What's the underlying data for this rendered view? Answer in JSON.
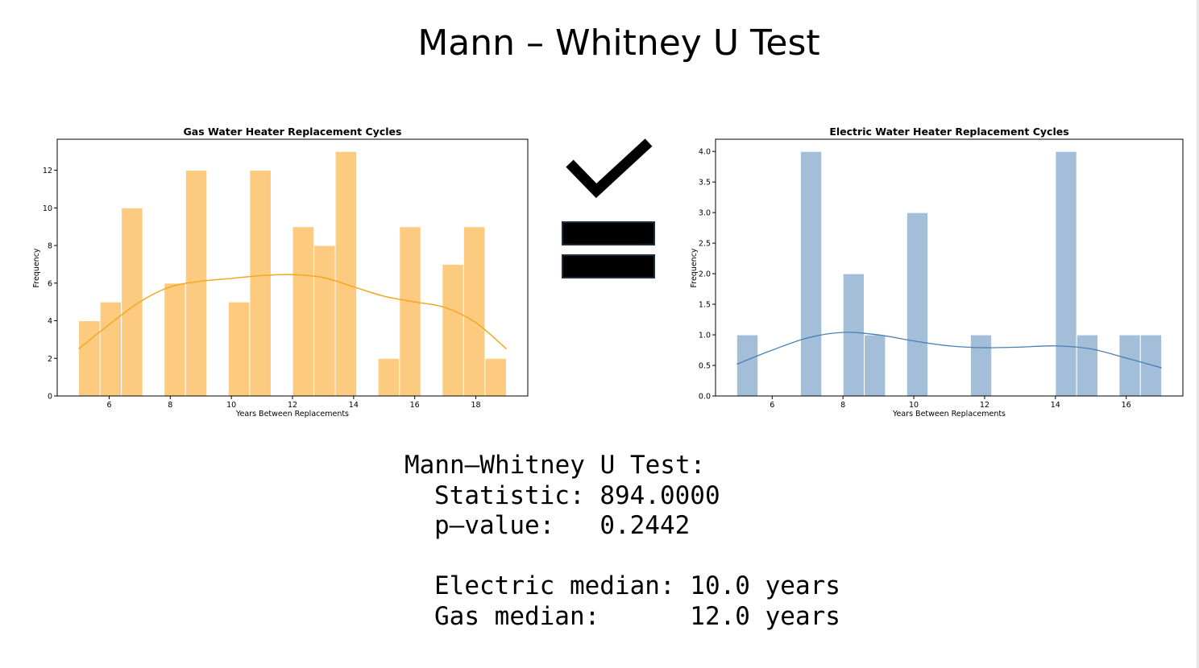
{
  "slide": {
    "title": "Mann – Whitney U Test"
  },
  "symbols": {
    "check": "check-icon",
    "equals": "equals-icon",
    "color": "#000000"
  },
  "chart_data": [
    {
      "type": "bar",
      "title": "Gas Water Heater Replacement Cycles",
      "xlabel": "Years Between Replacements",
      "ylabel": "Frequency",
      "bar_color": "#fdcb80",
      "kde_color": "#f5a623",
      "xlim": [
        4.3,
        19.7
      ],
      "ylim": [
        0,
        13.65
      ],
      "x_ticks": [
        6,
        8,
        10,
        12,
        14,
        16,
        18
      ],
      "y_ticks": [
        0,
        2,
        4,
        6,
        8,
        10,
        12
      ],
      "bins": [
        {
          "x0": 5.0,
          "x1": 5.7,
          "value": 4
        },
        {
          "x0": 5.7,
          "x1": 6.4,
          "value": 5
        },
        {
          "x0": 6.4,
          "x1": 7.1,
          "value": 10
        },
        {
          "x0": 7.8,
          "x1": 8.5,
          "value": 6
        },
        {
          "x0": 8.5,
          "x1": 9.2,
          "value": 12
        },
        {
          "x0": 9.9,
          "x1": 10.6,
          "value": 5
        },
        {
          "x0": 10.6,
          "x1": 11.3,
          "value": 12
        },
        {
          "x0": 12.0,
          "x1": 12.7,
          "value": 9
        },
        {
          "x0": 12.7,
          "x1": 13.4,
          "value": 8
        },
        {
          "x0": 13.4,
          "x1": 14.1,
          "value": 13
        },
        {
          "x0": 14.8,
          "x1": 15.5,
          "value": 2
        },
        {
          "x0": 15.5,
          "x1": 16.2,
          "value": 9
        },
        {
          "x0": 16.9,
          "x1": 17.6,
          "value": 7
        },
        {
          "x0": 17.6,
          "x1": 18.3,
          "value": 9
        },
        {
          "x0": 18.3,
          "x1": 19.0,
          "value": 2
        }
      ],
      "kde": {
        "x": [
          5,
          6,
          7,
          8,
          9,
          10,
          11,
          12,
          13,
          14,
          15,
          16,
          17,
          18,
          19
        ],
        "y": [
          2.5,
          3.8,
          5.0,
          5.8,
          6.1,
          6.25,
          6.4,
          6.45,
          6.3,
          5.8,
          5.3,
          5.0,
          4.7,
          3.9,
          2.5
        ]
      }
    },
    {
      "type": "bar",
      "title": "Electric Water Heater Replacement Cycles",
      "xlabel": "Years Between Replacements",
      "ylabel": "Frequency",
      "bar_color": "#a2bed8",
      "kde_color": "#4a80b4",
      "xlim": [
        4.4,
        17.6
      ],
      "ylim": [
        0,
        4.2
      ],
      "x_ticks": [
        6,
        8,
        10,
        12,
        14,
        16
      ],
      "y_ticks": [
        0,
        0.5,
        1.0,
        1.5,
        2.0,
        2.5,
        3.0,
        3.5,
        4.0
      ],
      "bins": [
        {
          "x0": 5.0,
          "x1": 5.6,
          "value": 1
        },
        {
          "x0": 6.8,
          "x1": 7.4,
          "value": 4
        },
        {
          "x0": 8.0,
          "x1": 8.6,
          "value": 2
        },
        {
          "x0": 8.6,
          "x1": 9.2,
          "value": 1
        },
        {
          "x0": 9.8,
          "x1": 10.4,
          "value": 3
        },
        {
          "x0": 11.6,
          "x1": 12.2,
          "value": 1
        },
        {
          "x0": 14.0,
          "x1": 14.6,
          "value": 4
        },
        {
          "x0": 14.6,
          "x1": 15.2,
          "value": 1
        },
        {
          "x0": 15.8,
          "x1": 16.4,
          "value": 1
        },
        {
          "x0": 16.4,
          "x1": 17.0,
          "value": 1
        }
      ],
      "kde": {
        "x": [
          5,
          6,
          7,
          8,
          9,
          10,
          11,
          12,
          13,
          14,
          15,
          16,
          17
        ],
        "y": [
          0.52,
          0.75,
          0.95,
          1.04,
          1.0,
          0.9,
          0.82,
          0.79,
          0.8,
          0.82,
          0.77,
          0.62,
          0.46
        ]
      }
    }
  ],
  "results": {
    "heading": "Mann–Whitney U Test:",
    "statistic_label": "Statistic:",
    "statistic_value": "894.0000",
    "pvalue_label": "p–value:",
    "pvalue_value": "0.2442",
    "electric_label": "Electric median:",
    "electric_value": "10.0 years",
    "gas_label": "Gas median:",
    "gas_value": "12.0 years"
  }
}
